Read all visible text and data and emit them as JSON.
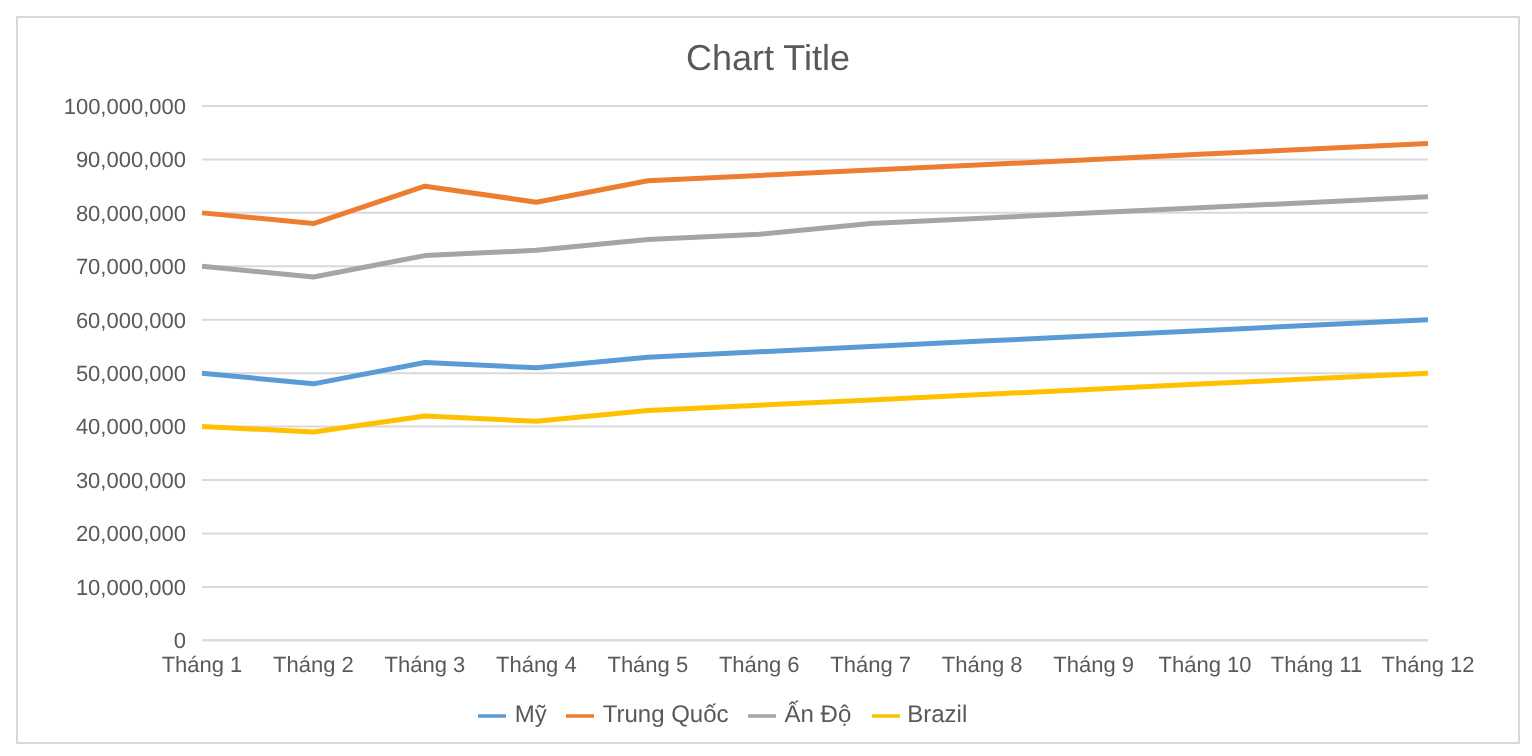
{
  "chart_data": {
    "type": "line",
    "title": "Chart Title",
    "categories": [
      "Tháng 1",
      "Tháng 2",
      "Tháng 3",
      "Tháng 4",
      "Tháng 5",
      "Tháng 6",
      "Tháng 7",
      "Tháng 8",
      "Tháng 9",
      "Tháng 10",
      "Tháng 11",
      "Tháng 12"
    ],
    "series": [
      {
        "name": "Mỹ",
        "color": "#5b9bd5",
        "values": [
          50000000,
          48000000,
          52000000,
          51000000,
          53000000,
          54000000,
          55000000,
          56000000,
          57000000,
          58000000,
          59000000,
          60000000
        ]
      },
      {
        "name": "Trung Quốc",
        "color": "#ed7d31",
        "values": [
          80000000,
          78000000,
          85000000,
          82000000,
          86000000,
          87000000,
          88000000,
          89000000,
          90000000,
          91000000,
          92000000,
          93000000
        ]
      },
      {
        "name": "Ấn Độ",
        "color": "#a5a5a5",
        "values": [
          70000000,
          68000000,
          72000000,
          73000000,
          75000000,
          76000000,
          78000000,
          79000000,
          80000000,
          81000000,
          82000000,
          83000000
        ]
      },
      {
        "name": "Brazil",
        "color": "#ffc000",
        "values": [
          40000000,
          39000000,
          42000000,
          41000000,
          43000000,
          44000000,
          45000000,
          46000000,
          47000000,
          48000000,
          49000000,
          50000000
        ]
      }
    ],
    "ylim": [
      0,
      100000000
    ],
    "yticks": [
      0,
      {
        "value": 10000000,
        "label": "10,000,000"
      },
      {
        "value": 20000000,
        "label": "20,000,000"
      },
      {
        "value": 30000000,
        "label": "30,000,000"
      },
      {
        "value": 40000000,
        "label": "40,000,000"
      },
      {
        "value": 50000000,
        "label": "50,000,000"
      },
      {
        "value": 60000000,
        "label": "60,000,000"
      },
      {
        "value": 70000000,
        "label": "70,000,000"
      },
      {
        "value": 80000000,
        "label": "80,000,000"
      },
      {
        "value": 90000000,
        "label": "90,000,000"
      },
      {
        "value": 100000000,
        "label": "100,000,000"
      }
    ],
    "grid": "y",
    "legend": "bottom",
    "marker": "none",
    "line_style": "solid"
  }
}
